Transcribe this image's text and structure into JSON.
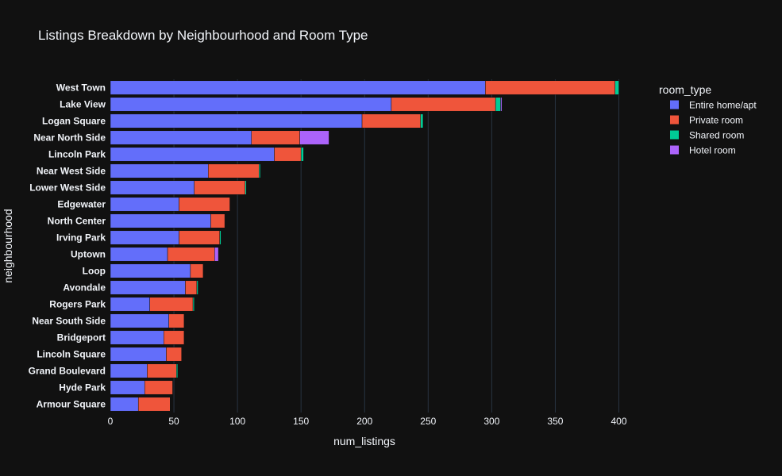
{
  "chart_data": {
    "type": "bar",
    "orientation": "horizontal",
    "barmode": "stack",
    "title": "Listings Breakdown by Neighbourhood and Room Type",
    "xlabel": "num_listings",
    "ylabel": "neighbourhood",
    "xlim": [
      0,
      420
    ],
    "xticks": [
      0,
      50,
      100,
      150,
      200,
      250,
      300,
      350,
      400
    ],
    "grid": true,
    "legend_title": "room_type",
    "legend_position": "right",
    "categories": [
      "West Town",
      "Lake View",
      "Logan Square",
      "Near North Side",
      "Lincoln Park",
      "Near West Side",
      "Lower West Side",
      "Edgewater",
      "North Center",
      "Irving Park",
      "Uptown",
      "Loop",
      "Avondale",
      "Rogers Park",
      "Near South Side",
      "Bridgeport",
      "Lincoln Square",
      "Grand Boulevard",
      "Hyde Park",
      "Armour Square"
    ],
    "series": [
      {
        "name": "Entire home/apt",
        "color": "#636efa",
        "values": [
          295,
          221,
          198,
          111,
          129,
          77,
          66,
          54,
          79,
          54,
          45,
          63,
          59,
          31,
          46,
          42,
          44,
          29,
          27,
          22
        ]
      },
      {
        "name": "Private room",
        "color": "#ef553b",
        "values": [
          102,
          82,
          46,
          38,
          21,
          40,
          40,
          40,
          11,
          32,
          37,
          10,
          9,
          34,
          12,
          16,
          12,
          23,
          22,
          25
        ]
      },
      {
        "name": "Shared room",
        "color": "#00cc96",
        "values": [
          3,
          4,
          2,
          0,
          2,
          1,
          1,
          0,
          0,
          1,
          0,
          0,
          1,
          1,
          0,
          0,
          0,
          1,
          0,
          0
        ]
      },
      {
        "name": "Hotel room",
        "color": "#ab63fa",
        "values": [
          0,
          1,
          0,
          23,
          0,
          0,
          0,
          0,
          0,
          0,
          3,
          0,
          0,
          0,
          0,
          0,
          0,
          0,
          0,
          0
        ]
      }
    ]
  },
  "colors": {
    "background": "#111111",
    "gridline": "#283442",
    "text": "#f2f5fa",
    "bar_outline": "#111111"
  }
}
